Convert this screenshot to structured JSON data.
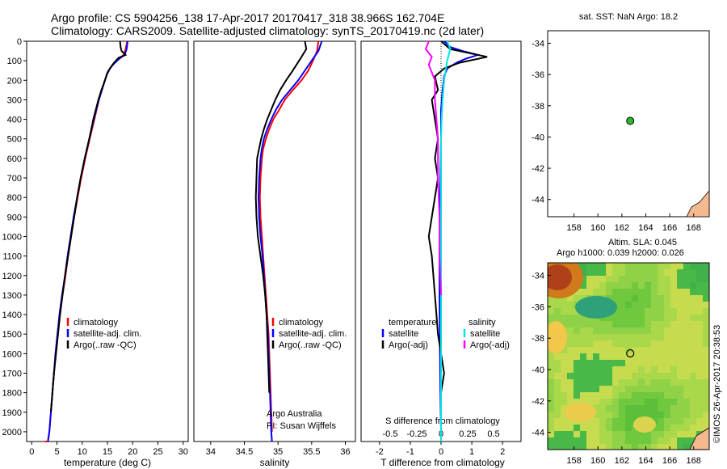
{
  "header": {
    "line1": "Argo profile: CS 5904256_138 17-Apr-2017 20170417_318 38.966S 162.704E",
    "line2": "Climatology: CARS2009. Satellite-adjusted climatology: synTS_20170419.nc (2d later)"
  },
  "colors": {
    "climatology": "#ff0000",
    "satellite": "#0000ff",
    "argo": "#000000",
    "sal_satellite": "#00e5e5",
    "sal_argo": "#ff00ff",
    "land": "#f5b98f"
  },
  "chart_data": [
    {
      "id": "temperature",
      "type": "line",
      "xlabel": "temperature (deg C)",
      "ylabel": "",
      "xlim": [
        -1,
        31
      ],
      "ylim": [
        2050,
        0
      ],
      "xticks": [
        0,
        5,
        10,
        15,
        20,
        25,
        30
      ],
      "yticks": [
        0,
        100,
        200,
        300,
        400,
        500,
        600,
        700,
        800,
        900,
        1000,
        1100,
        1200,
        1300,
        1400,
        1500,
        1600,
        1700,
        1800,
        1900,
        2000
      ],
      "legend": [
        "climatology",
        "satellite-adj. clim.",
        "Argo(..raw -QC)"
      ],
      "series": [
        {
          "name": "climatology",
          "color": "#ff0000",
          "x": [
            18.9,
            18.6,
            18.2,
            17.5,
            16.8,
            16.0,
            15.5,
            15.0,
            14.5,
            13.9,
            13.3,
            12.4,
            11.5,
            10.6,
            9.8,
            9.1,
            8.4,
            7.8,
            7.2,
            6.7,
            6.1,
            5.6,
            5.2,
            4.8,
            4.4,
            4.1,
            3.8,
            3.5,
            3.2,
            3.0,
            2.7,
            2.6,
            2.6
          ],
          "y": [
            0,
            40,
            70,
            85,
            100,
            120,
            140,
            160,
            200,
            250,
            300,
            400,
            500,
            600,
            700,
            800,
            900,
            1000,
            1100,
            1200,
            1300,
            1400,
            1500,
            1600,
            1700,
            1800,
            1900,
            2000,
            2050,
            2050,
            2050,
            2050,
            2050
          ]
        },
        {
          "name": "satellite-adj. clim.",
          "color": "#0000ff",
          "x": [
            19.0,
            18.8,
            18.4,
            17.6,
            16.9,
            16.1,
            15.5,
            15.0,
            14.5,
            13.9,
            13.3,
            12.3,
            11.4,
            10.5,
            9.7,
            9.0,
            8.3,
            7.7,
            7.1,
            6.6,
            6.0,
            5.5,
            5.1,
            4.7,
            4.4,
            4.1,
            3.8,
            3.5,
            3.2
          ],
          "y": [
            0,
            40,
            70,
            85,
            100,
            120,
            140,
            160,
            200,
            250,
            300,
            400,
            500,
            600,
            700,
            800,
            900,
            1000,
            1100,
            1200,
            1300,
            1400,
            1500,
            1600,
            1700,
            1800,
            1900,
            2000,
            2050
          ]
        },
        {
          "name": "Argo(..raw -QC)",
          "color": "#000000",
          "x": [
            17.5,
            17.6,
            17.8,
            18.6,
            17.2,
            16.3,
            15.5,
            14.9,
            14.5,
            13.8,
            13.2,
            12.2,
            11.4,
            10.5,
            9.7,
            9.0,
            8.4,
            7.8,
            7.2,
            6.6,
            6.1,
            5.6,
            5.2,
            4.8,
            4.4,
            4.1,
            3.8
          ],
          "y": [
            0,
            30,
            50,
            70,
            85,
            110,
            140,
            170,
            200,
            250,
            300,
            400,
            500,
            600,
            700,
            800,
            900,
            1000,
            1100,
            1200,
            1300,
            1400,
            1500,
            1600,
            1700,
            1800,
            1900
          ]
        }
      ]
    },
    {
      "id": "salinity",
      "type": "line",
      "xlabel": "salinity",
      "ylabel": "",
      "xlim": [
        33.75,
        36.15
      ],
      "ylim": [
        2050,
        0
      ],
      "xticks": [
        34,
        34.5,
        35,
        35.5,
        36
      ],
      "legend": [
        "climatology",
        "satellite-adj. clim.",
        "Argo(..raw -QC)"
      ],
      "annotations": [
        "Argo Australia",
        "PI: Susan Wijffels"
      ],
      "series": [
        {
          "name": "climatology",
          "color": "#ff0000",
          "x": [
            35.6,
            35.58,
            35.52,
            35.45,
            35.35,
            35.22,
            35.1,
            35.02,
            34.93,
            34.87,
            34.82,
            34.78,
            34.76,
            34.74,
            34.73,
            34.74,
            34.76,
            34.78,
            34.8,
            34.82,
            34.84,
            34.86,
            34.87,
            34.88,
            34.89,
            34.9,
            34.91
          ],
          "y": [
            0,
            50,
            100,
            150,
            200,
            250,
            300,
            350,
            400,
            450,
            500,
            550,
            600,
            700,
            800,
            900,
            1000,
            1100,
            1200,
            1300,
            1400,
            1500,
            1600,
            1700,
            1800,
            1900,
            2000
          ]
        },
        {
          "name": "satellite-adj. clim.",
          "color": "#0000ff",
          "x": [
            35.65,
            35.6,
            35.5,
            35.4,
            35.3,
            35.18,
            35.06,
            34.97,
            34.9,
            34.84,
            34.79,
            34.76,
            34.74,
            34.72,
            34.71,
            34.72,
            34.74,
            34.77,
            34.79,
            34.81,
            34.83,
            34.85,
            34.86,
            34.87,
            34.88,
            34.89,
            34.9,
            34.91
          ],
          "y": [
            0,
            50,
            100,
            150,
            200,
            250,
            300,
            350,
            400,
            450,
            500,
            550,
            600,
            700,
            800,
            900,
            1000,
            1100,
            1200,
            1300,
            1400,
            1500,
            1600,
            1700,
            1800,
            1900,
            2000,
            2050
          ]
        },
        {
          "name": "Argo(..raw -QC)",
          "color": "#000000",
          "x": [
            35.4,
            35.42,
            35.35,
            35.22,
            35.12,
            35.03,
            34.96,
            34.9,
            34.84,
            34.79,
            34.75,
            34.72,
            34.69,
            34.68,
            34.67,
            34.68,
            34.7,
            34.74,
            34.78,
            34.81,
            34.83,
            34.84,
            34.85,
            34.86,
            34.87
          ],
          "y": [
            0,
            40,
            80,
            150,
            200,
            250,
            300,
            350,
            400,
            450,
            500,
            550,
            600,
            700,
            800,
            900,
            1000,
            1100,
            1200,
            1300,
            1400,
            1500,
            1600,
            1700,
            1800
          ]
        }
      ]
    },
    {
      "id": "difference",
      "type": "line",
      "xlabel": "T difference from climatology",
      "xlabel2": "S difference from climatology",
      "ylabel": "",
      "xlim": [
        -2.6,
        2.6
      ],
      "ylim": [
        2050,
        0
      ],
      "xticks_T": [
        -2,
        -1,
        0,
        1,
        2
      ],
      "xticks_S": [
        "-0.5",
        "-0.25",
        "0",
        "0.25",
        "0.5"
      ],
      "legend_temperature_title": "temperature",
      "legend_salinity_title": "salinity",
      "legend": [
        "satellite",
        "Argo(-adj)",
        "satellite",
        "Argo(-adj)"
      ],
      "series": [
        {
          "name": "satellite",
          "group": "temperature",
          "color": "#0000ff",
          "x": [
            0.1,
            0.3,
            0.7,
            1.2,
            0.8,
            0.5,
            0.2,
            0.1,
            0.05,
            0.0,
            0.0,
            -0.02,
            -0.03,
            -0.05,
            -0.05,
            -0.04,
            -0.03,
            -0.02,
            -0.01,
            0.0,
            0.0
          ],
          "y": [
            0,
            30,
            50,
            70,
            90,
            110,
            140,
            180,
            250,
            350,
            500,
            700,
            900,
            1100,
            1300,
            1500,
            1700,
            1800,
            1900,
            2000,
            2050
          ]
        },
        {
          "name": "Argo(-adj)",
          "group": "temperature",
          "color": "#000000",
          "x": [
            0.0,
            0.3,
            1.5,
            0.6,
            0.1,
            -0.2,
            -0.1,
            -0.3,
            -0.2,
            -0.1,
            -0.2,
            -0.1,
            -0.2,
            -0.3,
            -0.4,
            -0.3,
            -0.2,
            -0.1,
            0.0,
            0.1,
            0.0,
            0.0
          ],
          "y": [
            0,
            40,
            80,
            110,
            140,
            180,
            250,
            300,
            400,
            500,
            600,
            700,
            800,
            900,
            1000,
            1100,
            1300,
            1500,
            1600,
            1700,
            1800,
            1900
          ]
        },
        {
          "name": "satellite",
          "group": "salinity",
          "color": "#00e5e5",
          "x": [
            0.2,
            0.3,
            0.2,
            0.1,
            0.05,
            0.02,
            0.0,
            0.0,
            0.0,
            0.0,
            0.0,
            0.0,
            0.0
          ],
          "y": [
            0,
            40,
            100,
            200,
            300,
            400,
            500,
            700,
            1000,
            1300,
            1600,
            1900,
            2050
          ]
        },
        {
          "name": "Argo(-adj)",
          "group": "salinity",
          "color": "#ff00ff",
          "x": [
            -0.4,
            -0.5,
            -0.3,
            -0.4,
            -0.2,
            -0.2,
            -0.1,
            -0.1,
            -0.05,
            -0.05,
            0.0
          ],
          "y": [
            0,
            40,
            80,
            120,
            200,
            300,
            500,
            700,
            900,
            1100,
            1300
          ]
        }
      ]
    },
    {
      "id": "sst-map",
      "type": "scatter",
      "title": "sat. SST: NaN Argo: 18.2",
      "xlim": [
        155.8,
        169.3
      ],
      "ylim": [
        -45.1,
        -33.2
      ],
      "xticks": [
        158,
        160,
        162,
        164,
        166,
        168
      ],
      "yticks": [
        -34,
        -36,
        -38,
        -40,
        -42,
        -44
      ],
      "points": [
        {
          "x": 162.7,
          "y": -38.97,
          "color": "#2db82d"
        }
      ]
    },
    {
      "id": "sla-map",
      "type": "heatmap",
      "title": "Altim. SLA: 0.045",
      "subtitle": "Argo h1000: 0.039 h2000: 0.026",
      "xlim": [
        155.8,
        169.3
      ],
      "ylim": [
        -45.1,
        -33.2
      ],
      "xticks": [
        158,
        160,
        162,
        164,
        166,
        168
      ],
      "yticks": [
        -34,
        -36,
        -38,
        -40,
        -42,
        -44
      ],
      "points": [
        {
          "x": 162.7,
          "y": -38.97
        }
      ]
    }
  ],
  "footer": {
    "credit": "©IMOS 26-Apr-2017 20:38:53"
  }
}
